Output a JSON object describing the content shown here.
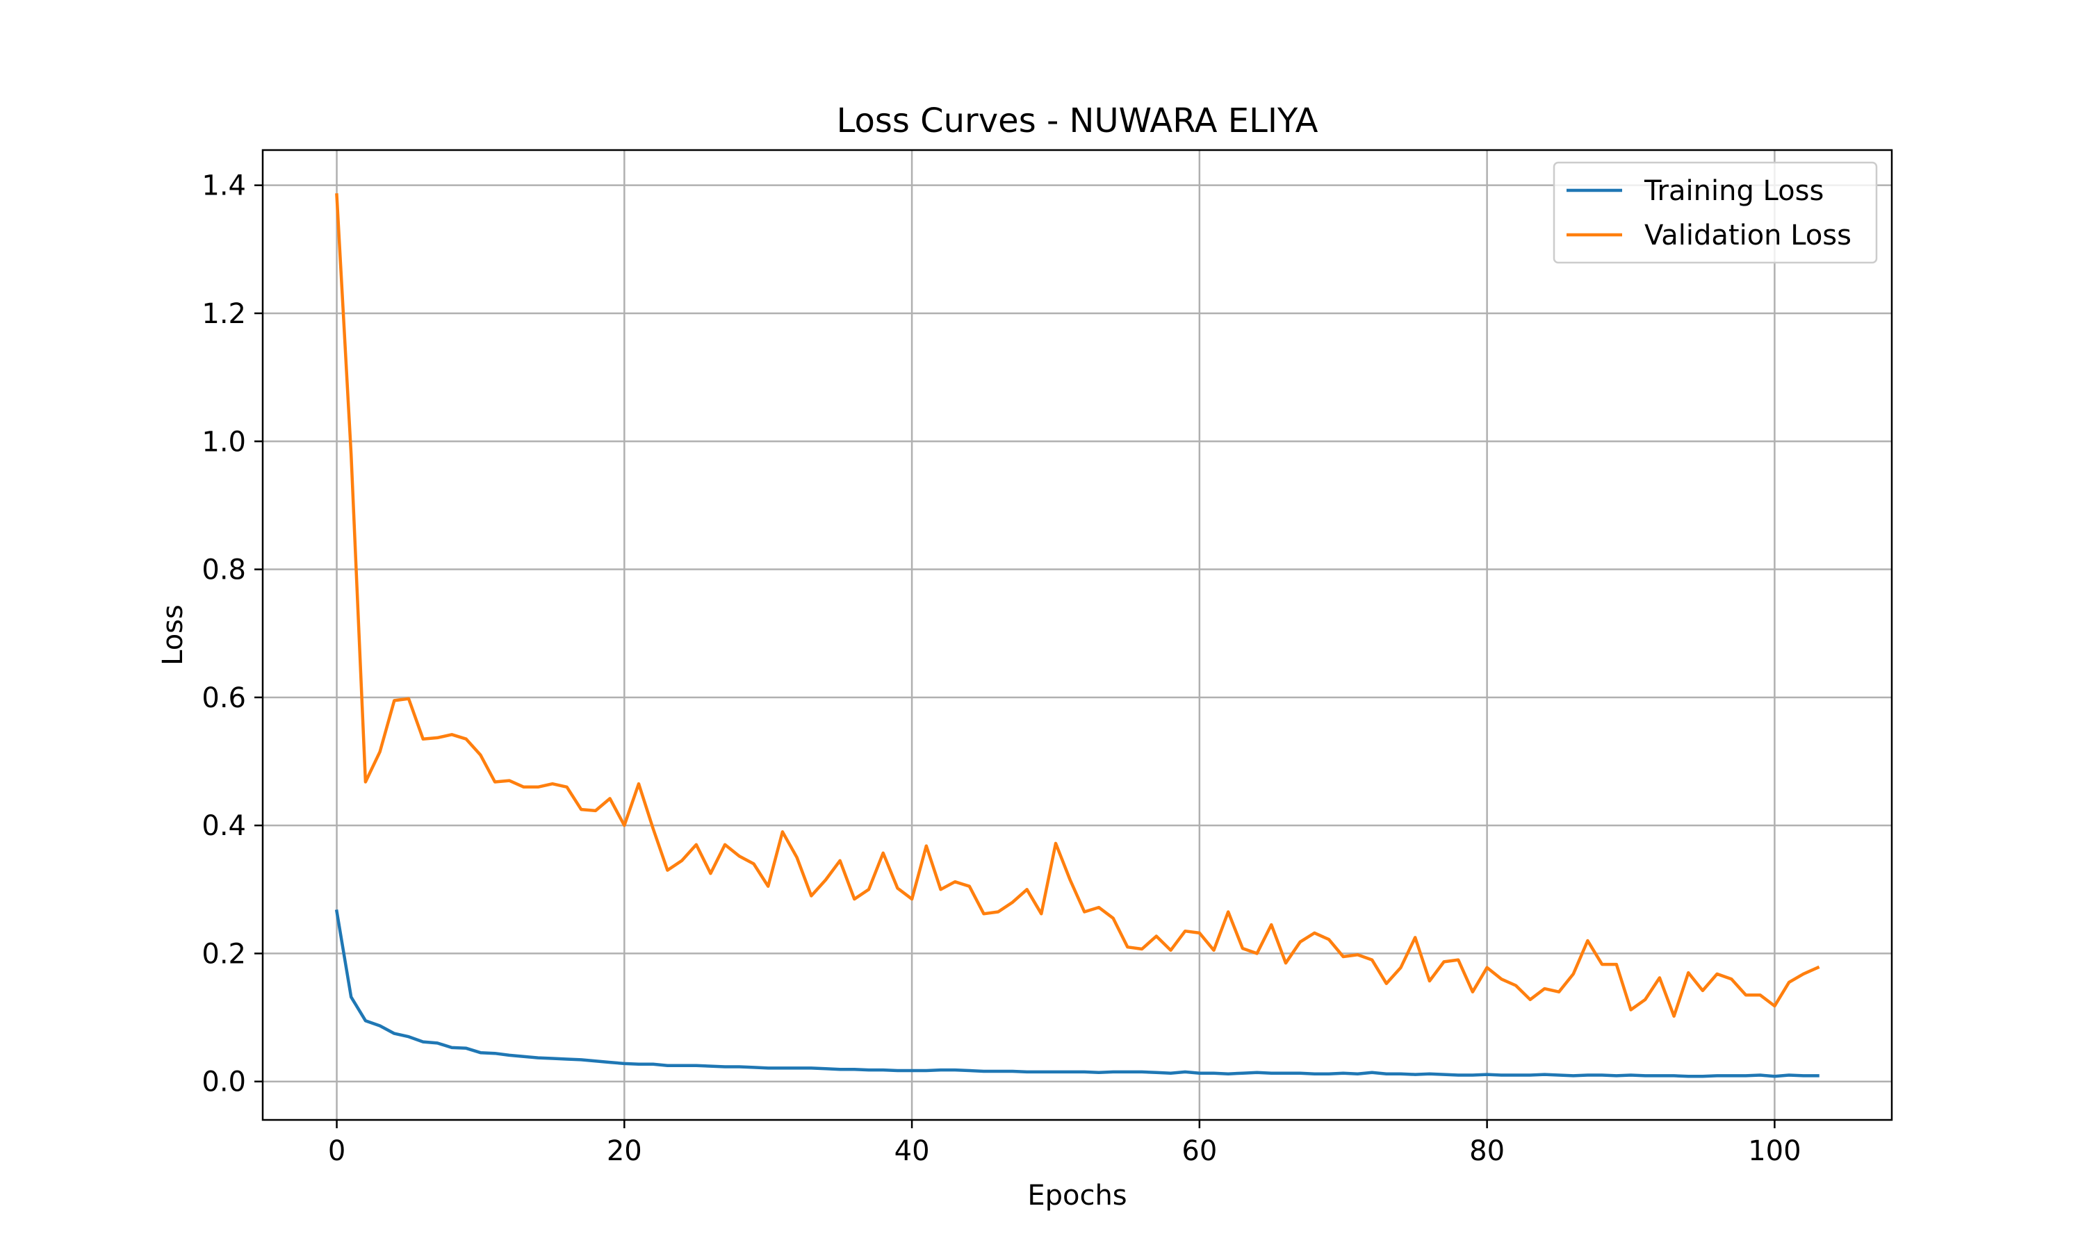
{
  "chart_data": {
    "type": "line",
    "title": "Loss Curves - NUWARA ELIYA",
    "xlabel": "Epochs",
    "ylabel": "Loss",
    "xlim": [
      -5.15,
      108.15
    ],
    "ylim": [
      -0.06,
      1.455
    ],
    "xticks": [
      0,
      20,
      40,
      60,
      80,
      100
    ],
    "yticks": [
      0.0,
      0.2,
      0.4,
      0.6,
      0.8,
      1.0,
      1.2,
      1.4
    ],
    "xtick_labels": [
      "0",
      "20",
      "40",
      "60",
      "80",
      "100"
    ],
    "ytick_labels": [
      "0.0",
      "0.2",
      "0.4",
      "0.6",
      "0.8",
      "1.0",
      "1.2",
      "1.4"
    ],
    "grid": true,
    "legend_position": "top-right",
    "x": [
      0,
      1,
      2,
      3,
      4,
      5,
      6,
      7,
      8,
      9,
      10,
      11,
      12,
      13,
      14,
      15,
      16,
      17,
      18,
      19,
      20,
      21,
      22,
      23,
      24,
      25,
      26,
      27,
      28,
      29,
      30,
      31,
      32,
      33,
      34,
      35,
      36,
      37,
      38,
      39,
      40,
      41,
      42,
      43,
      44,
      45,
      46,
      47,
      48,
      49,
      50,
      51,
      52,
      53,
      54,
      55,
      56,
      57,
      58,
      59,
      60,
      61,
      62,
      63,
      64,
      65,
      66,
      67,
      68,
      69,
      70,
      71,
      72,
      73,
      74,
      75,
      76,
      77,
      78,
      79,
      80,
      81,
      82,
      83,
      84,
      85,
      86,
      87,
      88,
      89,
      90,
      91,
      92,
      93,
      94,
      95,
      96,
      97,
      98,
      99,
      100,
      101,
      102,
      103
    ],
    "series": [
      {
        "name": "Training Loss",
        "color": "#1f77b4",
        "values": [
          0.266,
          0.132,
          0.095,
          0.087,
          0.075,
          0.07,
          0.062,
          0.06,
          0.053,
          0.052,
          0.045,
          0.044,
          0.041,
          0.039,
          0.037,
          0.036,
          0.035,
          0.034,
          0.032,
          0.03,
          0.028,
          0.027,
          0.027,
          0.025,
          0.025,
          0.025,
          0.024,
          0.023,
          0.023,
          0.022,
          0.021,
          0.021,
          0.021,
          0.021,
          0.02,
          0.019,
          0.019,
          0.018,
          0.018,
          0.017,
          0.017,
          0.017,
          0.018,
          0.018,
          0.017,
          0.016,
          0.016,
          0.016,
          0.015,
          0.015,
          0.015,
          0.015,
          0.015,
          0.014,
          0.015,
          0.015,
          0.015,
          0.014,
          0.013,
          0.015,
          0.013,
          0.013,
          0.012,
          0.013,
          0.014,
          0.013,
          0.013,
          0.013,
          0.012,
          0.012,
          0.013,
          0.012,
          0.014,
          0.012,
          0.012,
          0.011,
          0.012,
          0.011,
          0.01,
          0.01,
          0.011,
          0.01,
          0.01,
          0.01,
          0.011,
          0.01,
          0.009,
          0.01,
          0.01,
          0.009,
          0.01,
          0.009,
          0.009,
          0.009,
          0.008,
          0.008,
          0.009,
          0.009,
          0.009,
          0.01,
          0.008,
          0.01,
          0.009,
          0.009
        ]
      },
      {
        "name": "Validation Loss",
        "color": "#ff7f0e",
        "values": [
          1.385,
          0.98,
          0.468,
          0.515,
          0.595,
          0.598,
          0.535,
          0.537,
          0.542,
          0.535,
          0.51,
          0.468,
          0.47,
          0.46,
          0.46,
          0.465,
          0.46,
          0.425,
          0.423,
          0.442,
          0.4,
          0.465,
          0.395,
          0.33,
          0.345,
          0.37,
          0.325,
          0.37,
          0.352,
          0.34,
          0.305,
          0.39,
          0.35,
          0.29,
          0.315,
          0.345,
          0.285,
          0.3,
          0.357,
          0.302,
          0.285,
          0.368,
          0.3,
          0.312,
          0.305,
          0.262,
          0.265,
          0.28,
          0.3,
          0.262,
          0.372,
          0.315,
          0.265,
          0.272,
          0.255,
          0.21,
          0.207,
          0.227,
          0.205,
          0.235,
          0.232,
          0.205,
          0.265,
          0.208,
          0.2,
          0.245,
          0.185,
          0.218,
          0.232,
          0.222,
          0.195,
          0.198,
          0.19,
          0.153,
          0.178,
          0.225,
          0.157,
          0.187,
          0.19,
          0.14,
          0.178,
          0.16,
          0.15,
          0.128,
          0.145,
          0.14,
          0.168,
          0.22,
          0.183,
          0.183,
          0.112,
          0.128,
          0.162,
          0.102,
          0.17,
          0.142,
          0.168,
          0.16,
          0.135,
          0.135,
          0.118,
          0.155,
          0.168,
          0.178
        ]
      }
    ]
  }
}
